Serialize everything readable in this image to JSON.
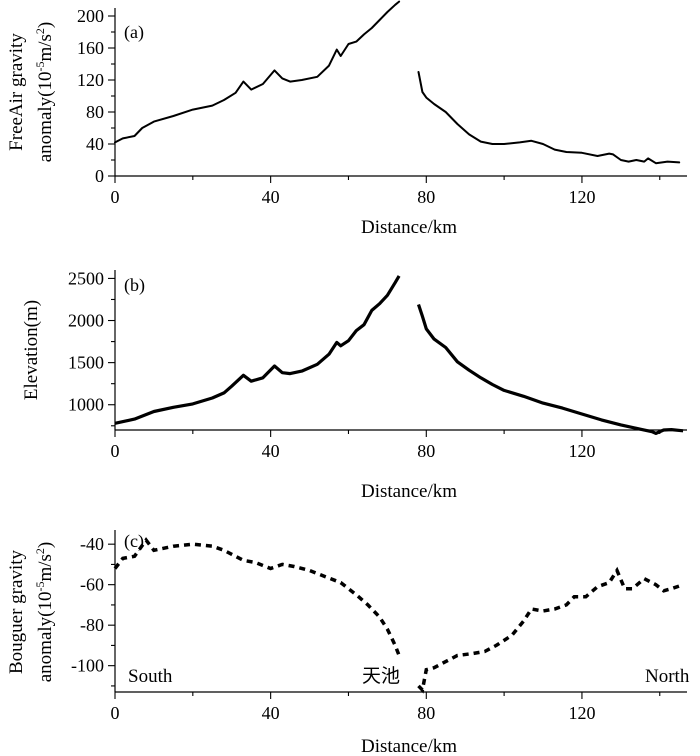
{
  "chart_data": [
    {
      "type": "line",
      "panel_label": "(a)",
      "xlabel": "Distance/km",
      "ylabel_line1": "FreeAir gravity",
      "ylabel_line2_prefix": "anomaly(10",
      "ylabel_exp1": "-5",
      "ylabel_mid": "m/s",
      "ylabel_exp2": "2",
      "ylabel_suffix": ")",
      "xlim": [
        0,
        147
      ],
      "ylim": [
        0,
        210
      ],
      "xticks": [
        0,
        40,
        80,
        120
      ],
      "yticks": [
        0,
        40,
        80,
        120,
        160,
        200
      ],
      "series": [
        {
          "name": "south",
          "x": [
            0,
            2,
            5,
            7,
            10,
            15,
            20,
            25,
            28,
            31,
            33,
            35,
            38,
            41,
            43,
            45,
            48,
            52,
            55,
            57,
            58,
            60,
            62,
            64,
            66,
            68,
            70,
            72,
            73
          ],
          "y": [
            42,
            47,
            50,
            60,
            68,
            75,
            83,
            88,
            95,
            104,
            118,
            108,
            115,
            132,
            122,
            118,
            120,
            124,
            138,
            158,
            150,
            165,
            168,
            177,
            185,
            195,
            205,
            214,
            218
          ]
        },
        {
          "name": "north",
          "x": [
            78,
            79,
            80,
            82,
            85,
            88,
            91,
            94,
            97,
            100,
            104,
            107,
            110,
            113,
            116,
            120,
            124,
            127,
            128,
            130,
            132,
            134,
            136,
            137,
            139,
            142,
            145
          ],
          "y": [
            130,
            105,
            98,
            90,
            80,
            65,
            52,
            43,
            40,
            40,
            42,
            44,
            40,
            33,
            30,
            29,
            25,
            28,
            27,
            20,
            18,
            20,
            18,
            22,
            16,
            18,
            17
          ]
        }
      ]
    },
    {
      "type": "line",
      "panel_label": "(b)",
      "xlabel": "Distance/km",
      "ylabel": "Elevation(m)",
      "xlim": [
        0,
        147
      ],
      "ylim": [
        700,
        2600
      ],
      "xticks": [
        0,
        40,
        80,
        120
      ],
      "yticks": [
        1000,
        1500,
        2000,
        2500
      ],
      "series": [
        {
          "name": "south",
          "x": [
            0,
            5,
            10,
            15,
            20,
            25,
            28,
            30,
            33,
            35,
            38,
            41,
            43,
            45,
            48,
            52,
            55,
            57,
            58,
            60,
            62,
            64,
            66,
            68,
            70,
            72,
            73
          ],
          "y": [
            780,
            830,
            920,
            970,
            1010,
            1080,
            1140,
            1220,
            1350,
            1280,
            1320,
            1460,
            1380,
            1370,
            1400,
            1480,
            1600,
            1740,
            1700,
            1760,
            1880,
            1950,
            2120,
            2200,
            2300,
            2450,
            2530
          ]
        },
        {
          "name": "north",
          "x": [
            78,
            79,
            80,
            82,
            85,
            88,
            91,
            94,
            97,
            100,
            105,
            110,
            115,
            120,
            125,
            130,
            135,
            138,
            139,
            141,
            143,
            146
          ],
          "y": [
            2190,
            2050,
            1900,
            1780,
            1680,
            1510,
            1410,
            1320,
            1240,
            1170,
            1100,
            1020,
            960,
            890,
            820,
            760,
            710,
            680,
            660,
            700,
            705,
            690
          ]
        }
      ]
    },
    {
      "type": "line",
      "panel_label": "(c)",
      "xlabel": "Distance/km",
      "ylabel_line1": "Bouguer gravity",
      "ylabel_line2_prefix": "anomaly(10",
      "ylabel_exp1": "-5",
      "ylabel_mid": "m/s",
      "ylabel_exp2": "2",
      "ylabel_suffix": ")",
      "xlim": [
        0,
        147
      ],
      "ylim": [
        -113,
        -33
      ],
      "xticks": [
        0,
        40,
        80,
        120
      ],
      "yticks": [
        -100,
        -80,
        -60,
        -40
      ],
      "annotations": {
        "south": "South",
        "center": "天池",
        "north": "North"
      },
      "series": [
        {
          "name": "south",
          "x": [
            0,
            2,
            5,
            8,
            10,
            15,
            20,
            25,
            28,
            30,
            33,
            36,
            40,
            43,
            46,
            50,
            54,
            58,
            62,
            65,
            68,
            70,
            72,
            73
          ],
          "y": [
            -52,
            -47,
            -46,
            -38,
            -43,
            -41,
            -40,
            -41,
            -43,
            -45,
            -48,
            -49,
            -52,
            -50,
            -51,
            -53,
            -56,
            -59,
            -65,
            -70,
            -76,
            -82,
            -90,
            -95
          ]
        },
        {
          "name": "north",
          "x": [
            78,
            79,
            80,
            82,
            85,
            88,
            92,
            95,
            98,
            102,
            105,
            107,
            110,
            113,
            116,
            118,
            121,
            124,
            127,
            129,
            131,
            133,
            136,
            139,
            141,
            143,
            146
          ],
          "y": [
            -110,
            -112,
            -102,
            -101,
            -98,
            -95,
            -94,
            -93,
            -90,
            -85,
            -78,
            -72,
            -73,
            -72,
            -70,
            -66,
            -66,
            -61,
            -59,
            -53,
            -62,
            -62,
            -57,
            -60,
            -63,
            -62,
            -60
          ]
        }
      ]
    }
  ]
}
